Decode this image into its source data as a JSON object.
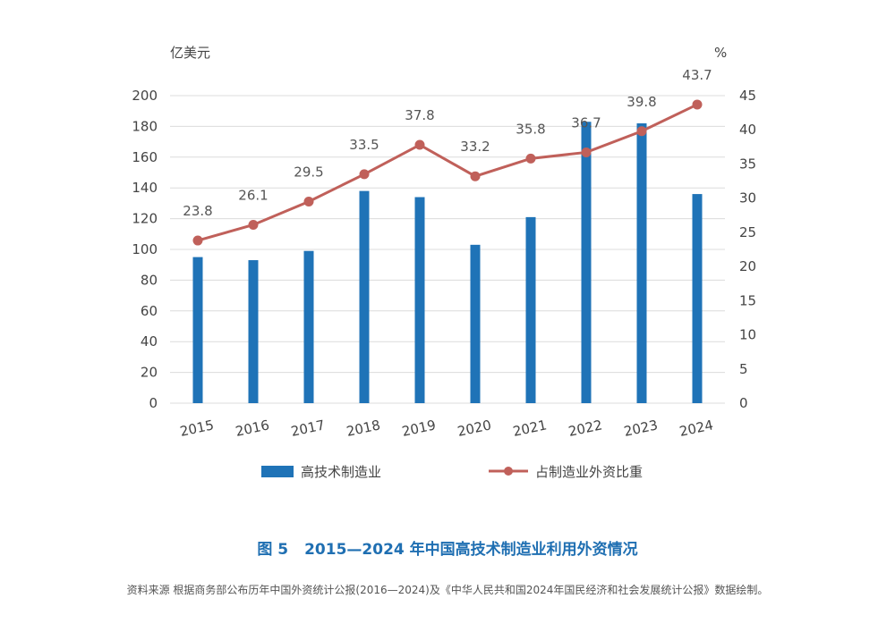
{
  "chart_data": {
    "type": "bar",
    "categories": [
      "2015",
      "2016",
      "2017",
      "2018",
      "2019",
      "2020",
      "2021",
      "2022",
      "2023",
      "2024"
    ],
    "series": [
      {
        "name": "高技术制造业",
        "type": "bar",
        "axis": "left",
        "values": [
          95,
          93,
          99,
          138,
          134,
          103,
          121,
          183,
          182,
          136
        ]
      },
      {
        "name": "占制造业外资比重",
        "type": "line",
        "axis": "right",
        "values": [
          23.8,
          26.1,
          29.5,
          33.5,
          37.8,
          33.2,
          35.8,
          36.7,
          39.8,
          43.7
        ]
      }
    ],
    "data_labels": [
      "23.8",
      "26.1",
      "29.5",
      "33.5",
      "37.8",
      "33.2",
      "35.8",
      "36.7",
      "39.8",
      "43.7"
    ],
    "y_left_unit": "亿美元",
    "y_right_unit": "%",
    "ylim_left": [
      0,
      200
    ],
    "ylim_right": [
      0,
      45
    ],
    "y_left_ticks": [
      "0",
      "20",
      "40",
      "60",
      "80",
      "100",
      "120",
      "140",
      "160",
      "180",
      "200"
    ],
    "y_right_ticks": [
      "0",
      "5",
      "10",
      "15",
      "20",
      "25",
      "30",
      "35",
      "40",
      "45"
    ],
    "grid": true,
    "legend_position": "bottom",
    "colors": {
      "bar": "#1f73b7",
      "line": "#c0605a",
      "grid": "#dcdcdc",
      "caption": "#1f6fb2"
    }
  },
  "caption": {
    "figure_no": "图 5",
    "title": "2015—2024 年中国高技术制造业利用外资情况"
  },
  "source_note": "资料来源 根据商务部公布历年中国外资统计公报(2016—2024)及《中华人民共和国2024年国民经济和社会发展统计公报》数据绘制。"
}
